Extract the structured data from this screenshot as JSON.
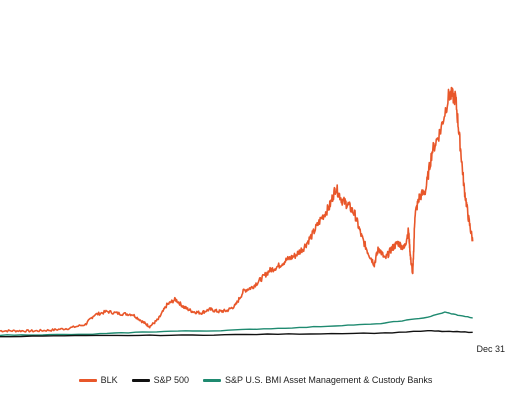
{
  "chart_data": {
    "type": "line",
    "title": "",
    "xlabel": "",
    "ylabel": "",
    "x_tick_labels": [
      "Dec 31"
    ],
    "grid": false,
    "legend_position": "bottom",
    "series": [
      {
        "name": "BLK",
        "color": "#e8572a",
        "points": [
          [
            0.0,
            1.0
          ],
          [
            0.04,
            1.0
          ],
          [
            0.08,
            0.98
          ],
          [
            0.12,
            1.1
          ],
          [
            0.16,
            1.35
          ],
          [
            0.2,
            1.9
          ],
          [
            0.22,
            3.2
          ],
          [
            0.25,
            3.7
          ],
          [
            0.28,
            3.4
          ],
          [
            0.31,
            3.3
          ],
          [
            0.335,
            2.2
          ],
          [
            0.35,
            1.6
          ],
          [
            0.37,
            2.6
          ],
          [
            0.39,
            4.6
          ],
          [
            0.41,
            5.4
          ],
          [
            0.43,
            4.3
          ],
          [
            0.45,
            3.7
          ],
          [
            0.47,
            3.5
          ],
          [
            0.49,
            4.0
          ],
          [
            0.51,
            3.7
          ],
          [
            0.53,
            3.8
          ],
          [
            0.55,
            4.5
          ],
          [
            0.57,
            6.6
          ],
          [
            0.59,
            7.1
          ],
          [
            0.61,
            8.2
          ],
          [
            0.63,
            9.4
          ],
          [
            0.65,
            10.0
          ],
          [
            0.67,
            10.9
          ],
          [
            0.69,
            11.5
          ],
          [
            0.71,
            12.6
          ],
          [
            0.73,
            14.4
          ],
          [
            0.75,
            16.6
          ],
          [
            0.77,
            18.3
          ],
          [
            0.785,
            21.0
          ],
          [
            0.8,
            19.2
          ],
          [
            0.815,
            18.5
          ],
          [
            0.83,
            17.2
          ],
          [
            0.845,
            14.2
          ],
          [
            0.86,
            12.0
          ],
          [
            0.875,
            10.3
          ],
          [
            0.885,
            12.6
          ],
          [
            0.9,
            11.0
          ],
          [
            0.915,
            12.4
          ],
          [
            0.93,
            13.3
          ],
          [
            0.945,
            12.5
          ],
          [
            0.955,
            15.0
          ],
          [
            0.96,
            11.0
          ],
          [
            0.965,
            8.9
          ],
          [
            0.97,
            17.2
          ],
          [
            0.98,
            19.6
          ],
          [
            0.995,
            20.6
          ],
          [
            1.01,
            26.0
          ],
          [
            1.03,
            29.0
          ],
          [
            1.05,
            34.0
          ],
          [
            1.065,
            33.5
          ],
          [
            1.075,
            27.5
          ],
          [
            1.085,
            21.0
          ],
          [
            1.095,
            16.8
          ],
          [
            1.105,
            13.5
          ]
        ]
      },
      {
        "name": "S&P 500",
        "color": "#111111",
        "points": [
          [
            0.0,
            0.2
          ],
          [
            0.15,
            0.3
          ],
          [
            0.3,
            0.35
          ],
          [
            0.45,
            0.4
          ],
          [
            0.6,
            0.5
          ],
          [
            0.75,
            0.6
          ],
          [
            0.9,
            0.7
          ],
          [
            1.0,
            1.0
          ],
          [
            1.05,
            0.9
          ],
          [
            1.105,
            0.8
          ]
        ]
      },
      {
        "name": "S&P U.S. BMI Asset Management & Custody Banks",
        "color": "#1f8a70",
        "points": [
          [
            0.0,
            0.4
          ],
          [
            0.1,
            0.45
          ],
          [
            0.2,
            0.5
          ],
          [
            0.3,
            0.75
          ],
          [
            0.4,
            0.95
          ],
          [
            0.5,
            1.0
          ],
          [
            0.6,
            1.25
          ],
          [
            0.7,
            1.45
          ],
          [
            0.8,
            1.75
          ],
          [
            0.88,
            1.95
          ],
          [
            0.94,
            2.4
          ],
          [
            1.0,
            2.9
          ],
          [
            1.04,
            3.6
          ],
          [
            1.07,
            3.2
          ],
          [
            1.105,
            2.8
          ]
        ]
      }
    ],
    "x_range": [
      0,
      1.105
    ],
    "y_range": [
      0,
      36
    ]
  }
}
